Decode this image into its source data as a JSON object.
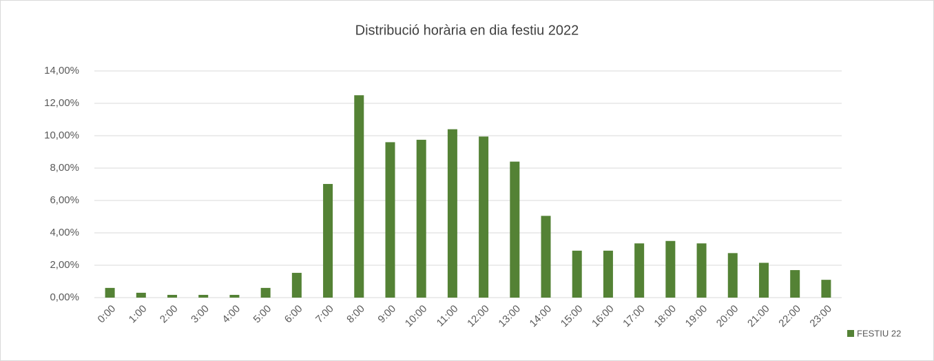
{
  "chart_data": {
    "type": "bar",
    "title": "Distribució horària en dia festiu 2022",
    "categories": [
      "0:00",
      "1:00",
      "2:00",
      "3:00",
      "4:00",
      "5:00",
      "6:00",
      "7:00",
      "8:00",
      "9:00",
      "10:00",
      "11:00",
      "12:00",
      "13:00",
      "14:00",
      "15:00",
      "16:00",
      "17:00",
      "18:00",
      "19:00",
      "20:00",
      "21:00",
      "22:00",
      "23:00"
    ],
    "series": [
      {
        "name": "FESTIU 22",
        "color": "#548235",
        "values": [
          0.6,
          0.3,
          0.17,
          0.17,
          0.17,
          0.6,
          1.53,
          7.02,
          12.5,
          9.6,
          9.75,
          10.4,
          9.95,
          8.4,
          5.05,
          2.9,
          2.9,
          3.35,
          3.5,
          3.35,
          2.75,
          2.15,
          1.7,
          1.1
        ]
      }
    ],
    "ylim": [
      0,
      14
    ],
    "yticks": [
      {
        "value": 0,
        "label": "0,00%"
      },
      {
        "value": 2,
        "label": "2,00%"
      },
      {
        "value": 4,
        "label": "4,00%"
      },
      {
        "value": 6,
        "label": "6,00%"
      },
      {
        "value": 8,
        "label": "8,00%"
      },
      {
        "value": 10,
        "label": "10,00%"
      },
      {
        "value": 12,
        "label": "12,00%"
      },
      {
        "value": 14,
        "label": "14,00%"
      }
    ],
    "grid": true,
    "legend": "right"
  }
}
